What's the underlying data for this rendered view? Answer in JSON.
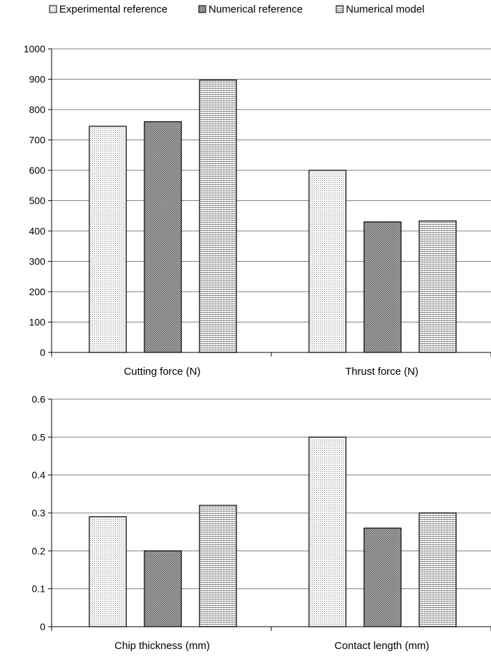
{
  "legend": [
    {
      "label": "Experimental reference",
      "pattern": "dots-light"
    },
    {
      "label": "Numerical reference",
      "pattern": "hatch-dense"
    },
    {
      "label": "Numerical model",
      "pattern": "hatch-horizontal"
    }
  ],
  "colors": {
    "axis": "#000000",
    "grid": "#808080",
    "bar_fill": "#ffffff",
    "bar_stroke": "#000000"
  },
  "chart_data": [
    {
      "type": "bar",
      "title": "",
      "xlabel": "",
      "ylabel": "",
      "categories": [
        "Cutting force (N)",
        "Thrust force (N)"
      ],
      "series": [
        {
          "name": "Experimental reference",
          "values": [
            745,
            600
          ]
        },
        {
          "name": "Numerical reference",
          "values": [
            760,
            430
          ]
        },
        {
          "name": "Numerical model",
          "values": [
            897,
            433
          ]
        }
      ],
      "ylim": [
        0,
        1000
      ],
      "yticks": [
        "0",
        "100",
        "200",
        "300",
        "400",
        "500",
        "600",
        "700",
        "800",
        "900",
        "1000"
      ],
      "grid": true,
      "legend_position": "top"
    },
    {
      "type": "bar",
      "title": "",
      "xlabel": "",
      "ylabel": "",
      "categories": [
        "Chip thickness (mm)",
        "Contact length (mm)"
      ],
      "series": [
        {
          "name": "Experimental reference",
          "values": [
            0.29,
            0.5
          ]
        },
        {
          "name": "Numerical reference",
          "values": [
            0.2,
            0.26
          ]
        },
        {
          "name": "Numerical model",
          "values": [
            0.32,
            0.3
          ]
        }
      ],
      "ylim": [
        0,
        0.6
      ],
      "yticks": [
        "0",
        "0.1",
        "0.2",
        "0.3",
        "0.4",
        "0.5",
        "0.6"
      ],
      "grid": true,
      "legend_position": "top"
    }
  ]
}
